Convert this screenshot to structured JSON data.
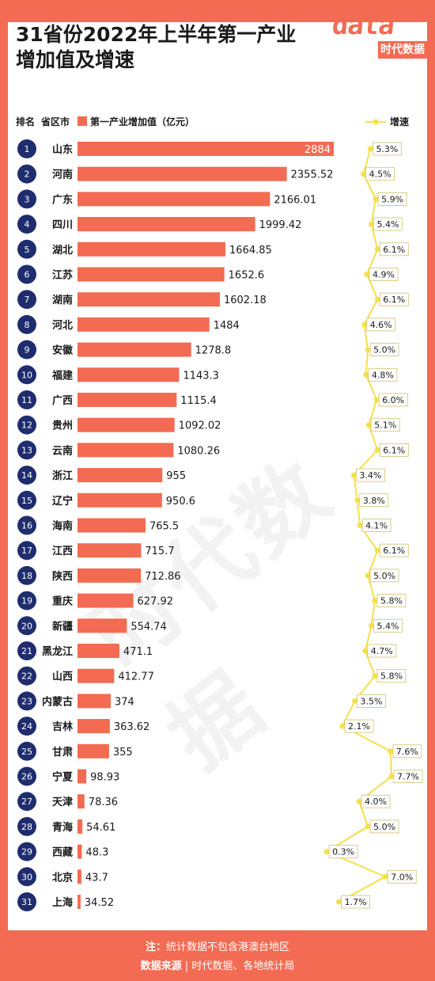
{
  "title_line1": "31省份2022年上半年第一产业",
  "title_line2": "增加值及增速",
  "logo": {
    "word": "data",
    "brand": "时代数据"
  },
  "watermark": "时代数据",
  "legend": {
    "rank": "排名",
    "province": "省区市",
    "value": "第一产业增加值（亿元）",
    "growth": "增速"
  },
  "colors": {
    "bar": "#f26b52",
    "rank_circle": "#1f2d6e",
    "growth_line": "#f5e04a",
    "background": "#f26b52"
  },
  "footer": {
    "note_label": "注：",
    "note": "统计数据不包含港澳台地区",
    "source_label": "数据来源",
    "source": "时代数据、各地统计局"
  },
  "chart_data": {
    "type": "bar",
    "orientation": "horizontal",
    "categories": [
      "山东",
      "河南",
      "广东",
      "四川",
      "湖北",
      "江苏",
      "湖南",
      "河北",
      "安徽",
      "福建",
      "广西",
      "贵州",
      "云南",
      "浙江",
      "辽宁",
      "海南",
      "江西",
      "陕西",
      "重庆",
      "新疆",
      "黑龙江",
      "山西",
      "内蒙古",
      "吉林",
      "甘肃",
      "宁夏",
      "天津",
      "青海",
      "西藏",
      "北京",
      "上海"
    ],
    "ranks": [
      1,
      2,
      3,
      4,
      5,
      6,
      7,
      8,
      9,
      10,
      11,
      12,
      13,
      14,
      15,
      16,
      17,
      18,
      19,
      20,
      21,
      22,
      23,
      24,
      25,
      26,
      27,
      28,
      29,
      30,
      31
    ],
    "series": [
      {
        "name": "第一产业增加值（亿元）",
        "values": [
          2884,
          2355.52,
          2166.01,
          1999.42,
          1664.85,
          1652.6,
          1602.18,
          1484,
          1278.8,
          1143.3,
          1115.4,
          1092.02,
          1080.26,
          955,
          950.6,
          765.5,
          715.7,
          712.86,
          627.92,
          554.74,
          471.1,
          412.77,
          374,
          363.62,
          355,
          98.93,
          78.36,
          54.61,
          48.3,
          43.7,
          34.52
        ]
      },
      {
        "name": "增速",
        "values": [
          5.3,
          4.5,
          5.9,
          5.4,
          6.1,
          4.9,
          6.1,
          4.6,
          5.0,
          4.8,
          6.0,
          5.1,
          6.1,
          3.4,
          3.8,
          4.1,
          6.1,
          5.0,
          5.8,
          5.4,
          4.7,
          5.8,
          3.5,
          2.1,
          7.6,
          7.7,
          4.0,
          5.0,
          0.3,
          7.0,
          1.7
        ]
      }
    ],
    "value_labels": [
      "2884",
      "2355.52",
      "2166.01",
      "1999.42",
      "1664.85",
      "1652.6",
      "1602.18",
      "1484",
      "1278.8",
      "1143.3",
      "1115.4",
      "1092.02",
      "1080.26",
      "955",
      "950.6",
      "765.5",
      "715.7",
      "712.86",
      "627.92",
      "554.74",
      "471.1",
      "412.77",
      "374",
      "363.62",
      "355",
      "98.93",
      "78.36",
      "54.61",
      "48.3",
      "43.7",
      "34.52"
    ],
    "growth_labels": [
      "5.3%",
      "4.5%",
      "5.9%",
      "5.4%",
      "6.1%",
      "4.9%",
      "6.1%",
      "4.6%",
      "5.0%",
      "4.8%",
      "6.0%",
      "5.1%",
      "6.1%",
      "3.4%",
      "3.8%",
      "4.1%",
      "6.1%",
      "5.0%",
      "5.8%",
      "5.4%",
      "4.7%",
      "5.8%",
      "3.5%",
      "2.1%",
      "7.6%",
      "7.7%",
      "4.0%",
      "5.0%",
      "0.3%",
      "7.0%",
      "1.7%"
    ]
  }
}
